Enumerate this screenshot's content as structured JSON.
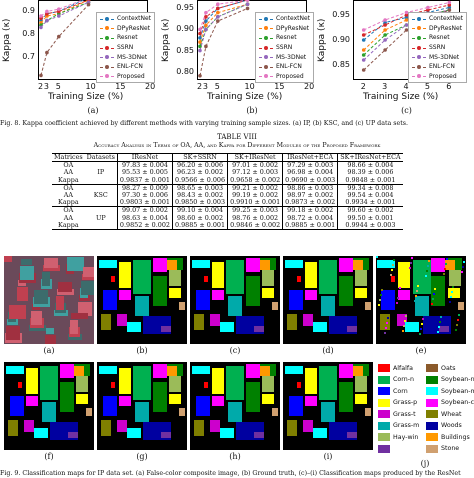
{
  "charts": [
    {
      "ylabel": "Kappa (κ)",
      "xlabel": "Training Size (%)",
      "yticks": [
        "0.9",
        "0.8",
        "0.7"
      ],
      "xticks": [
        "2",
        "3",
        "5",
        "10",
        "15",
        "20"
      ],
      "sub": "(a)"
    },
    {
      "ylabel": "Kappa (κ)",
      "xlabel": "Training Size (%)",
      "yticks": [
        "0.95",
        "0.90",
        "0.85",
        "0.80"
      ],
      "xticks": [
        "2",
        "3",
        "5",
        "10",
        "15",
        "20"
      ],
      "sub": "(b)"
    },
    {
      "ylabel": "Kappa (κ)",
      "xlabel": "Training Size (%)",
      "yticks": [
        "0.95",
        "0.90",
        "0.85"
      ],
      "xticks": [
        "2",
        "3",
        "4",
        "5",
        "6"
      ],
      "sub": "(c)"
    }
  ],
  "chart_data": [
    {
      "type": "line",
      "title": "",
      "xlabel": "Training Size (%)",
      "ylabel": "Kappa (κ)",
      "x": [
        2,
        3,
        5,
        10
      ],
      "ylim": [
        0.6,
        0.95
      ],
      "series": [
        {
          "name": "ContextNet",
          "values": [
            0.86,
            0.89,
            0.9,
            0.96
          ]
        },
        {
          "name": "DPyResNet",
          "values": [
            0.85,
            0.88,
            0.89,
            0.95
          ]
        },
        {
          "name": "Resnet",
          "values": [
            0.84,
            0.86,
            0.89,
            0.94
          ]
        },
        {
          "name": "SSRN",
          "values": [
            0.87,
            0.89,
            0.9,
            0.95
          ]
        },
        {
          "name": "MS-3DNet",
          "values": [
            0.83,
            0.86,
            0.88,
            0.94
          ]
        },
        {
          "name": "ENL-FCN",
          "values": [
            0.62,
            0.72,
            0.79,
            0.93
          ]
        },
        {
          "name": "Proposed",
          "values": [
            0.88,
            0.9,
            0.91,
            0.96
          ]
        }
      ]
    },
    {
      "type": "line",
      "title": "",
      "xlabel": "Training Size (%)",
      "ylabel": "Kappa (κ)",
      "x": [
        2,
        3,
        5,
        10
      ],
      "ylim": [
        0.78,
        0.97
      ],
      "series": [
        {
          "name": "ContextNet",
          "values": [
            0.88,
            0.92,
            0.95,
            0.97
          ]
        },
        {
          "name": "DPyResNet",
          "values": [
            0.87,
            0.91,
            0.94,
            0.96
          ]
        },
        {
          "name": "Resnet",
          "values": [
            0.86,
            0.9,
            0.93,
            0.96
          ]
        },
        {
          "name": "SSRN",
          "values": [
            0.89,
            0.93,
            0.95,
            0.97
          ]
        },
        {
          "name": "MS-3DNet",
          "values": [
            0.85,
            0.9,
            0.93,
            0.96
          ]
        },
        {
          "name": "ENL-FCN",
          "values": [
            0.79,
            0.86,
            0.92,
            0.95
          ]
        },
        {
          "name": "Proposed",
          "values": [
            0.9,
            0.94,
            0.96,
            0.97
          ]
        }
      ]
    },
    {
      "type": "line",
      "title": "",
      "xlabel": "Training Size (%)",
      "ylabel": "Kappa (κ)",
      "x": [
        2,
        3,
        4,
        5,
        6
      ],
      "ylim": [
        0.82,
        0.98
      ],
      "series": [
        {
          "name": "ContextNet",
          "values": [
            0.9,
            0.935,
            0.945,
            0.955,
            0.965
          ]
        },
        {
          "name": "DPyResNet",
          "values": [
            0.88,
            0.92,
            0.94,
            0.95,
            0.96
          ]
        },
        {
          "name": "Resnet",
          "values": [
            0.87,
            0.91,
            0.93,
            0.95,
            0.96
          ]
        },
        {
          "name": "SSRN",
          "values": [
            0.91,
            0.93,
            0.95,
            0.96,
            0.97
          ]
        },
        {
          "name": "MS-3DNet",
          "values": [
            0.86,
            0.9,
            0.93,
            0.95,
            0.96
          ]
        },
        {
          "name": "ENL-FCN",
          "values": [
            0.84,
            0.88,
            0.92,
            0.94,
            0.96
          ]
        },
        {
          "name": "Proposed",
          "values": [
            0.92,
            0.94,
            0.955,
            0.965,
            0.975
          ]
        }
      ]
    }
  ],
  "legend": [
    "ContextNet",
    "DPyResNet",
    "Resnet",
    "SSRN",
    "MS-3DNet",
    "ENL-FCN",
    "Proposed"
  ],
  "legend_colors": [
    "#1f77b4",
    "#ff7f0e",
    "#2ca02c",
    "#d62728",
    "#9467bd",
    "#8c564b",
    "#e377c2"
  ],
  "fig8_caption": "Fig. 8.   Kappa coefficient achieved by different methods with varying training sample sizes. (a) IP, (b) KSC, and (c) UP data sets.",
  "table": {
    "label": "TABLE VIII",
    "title": "Accuracy Analysis in Terms of OA, AA, and Kappa for Different Modules of the Proposed Framework",
    "headers": [
      "Matrices",
      "Datasets",
      "IResNet",
      "SK+SSRN",
      "SK+IResNet",
      "IResNet+ECA",
      "SK+IResNet+ECA"
    ],
    "groups": [
      {
        "dataset": "IP",
        "rows": [
          [
            "OA",
            "97.83 ± 0.004",
            "96.20 ± 0.006",
            "97.01 ± 0.002",
            "97.29 ± 0.003",
            "98.66 ± 0.004"
          ],
          [
            "AA",
            "95.53 ± 0.005",
            "96.23 ± 0.002",
            "97.12 ± 0.003",
            "96.98 ± 0.004",
            "98.39 ± 0.006"
          ],
          [
            "Kappa",
            "0.9837 ± 0.001",
            "0.9566 ± 0.006",
            "0.9658 ± 0.002",
            "0.9690 ± 0.003",
            "0.9848 ± 0.001"
          ]
        ]
      },
      {
        "dataset": "KSC",
        "rows": [
          [
            "OA",
            "98.27 ± 0.009",
            "98.65 ± 0.003",
            "99.21 ± 0.002",
            "98.86 ± 0.003",
            "99.34 ± 0.008"
          ],
          [
            "AA",
            "97.30 ± 0.006",
            "98.43 ± 0.002",
            "99.19 ± 0.002",
            "98.97 ± 0.002",
            "99.54 ± 0.004"
          ],
          [
            "Kappa",
            "0.9803 ± 0.001",
            "0.9850 ± 0.003",
            "0.9910 ± 0.001",
            "0.9873 ± 0.002",
            "0.9934 ± 0.001"
          ]
        ]
      },
      {
        "dataset": "UP",
        "rows": [
          [
            "OA",
            "99.07 ± 0.002",
            "99.10 ± 0.004",
            "99.25 ± 0.003",
            "99.18 ± 0.002",
            "99.60 ± 0.002"
          ],
          [
            "AA",
            "98.63 ± 0.004",
            "98.60 ± 0.002",
            "98.76 ± 0.002",
            "98.72 ± 0.004",
            "99.50 ± 0.001"
          ],
          [
            "Kappa",
            "0.9852 ± 0.002",
            "0.9885 ± 0.001",
            "0.9846 ± 0.002",
            "0.9885 ± 0.001",
            "0.9944 ± 0.003"
          ]
        ]
      }
    ]
  },
  "fig9_top_labels": [
    "(a)",
    "(b)",
    "(c)",
    "(d)",
    "(e)"
  ],
  "fig9_bottom_labels": [
    "(f)",
    "(g)",
    "(h)",
    "(i)",
    "(j)"
  ],
  "class_legend": [
    {
      "name": "Alfalfa",
      "color": "#ff0000"
    },
    {
      "name": "Oats",
      "color": "#8b5a2b"
    },
    {
      "name": "Corn-n",
      "color": "#00b050"
    },
    {
      "name": "Soybean-n",
      "color": "#008000"
    },
    {
      "name": "Corn",
      "color": "#0000ff"
    },
    {
      "name": "Soybean-m",
      "color": "#00ffff"
    },
    {
      "name": "Grass-p",
      "color": "#ffff00"
    },
    {
      "name": "Soybean-c",
      "color": "#ff00ff"
    },
    {
      "name": "Grass-t",
      "color": "#cc00cc"
    },
    {
      "name": "Wheat",
      "color": "#7f7f00"
    },
    {
      "name": "Grass-m",
      "color": "#00aaaa"
    },
    {
      "name": "Woods",
      "color": "#0000a0"
    },
    {
      "name": "Hay-win",
      "color": "#9bbb59"
    },
    {
      "name": "Buildings",
      "color": "#ff9900"
    },
    {
      "name": "",
      "color": "#7030a0"
    },
    {
      "name": "Stone",
      "color": "#d0a070"
    }
  ],
  "fig9_caption": "Fig. 9.   Classification maps for IP data set. (a) False-color composite image, (b) Ground truth, (c)–(i) Classification maps produced by the ResNet"
}
